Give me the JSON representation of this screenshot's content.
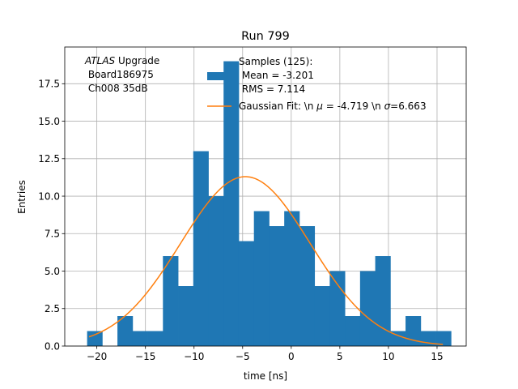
{
  "chart_data": {
    "type": "bar",
    "title": "Run 799",
    "xlabel": "time [ns]",
    "ylabel": "Entries",
    "xlim": [
      -23.3,
      18.0
    ],
    "ylim": [
      0,
      19.95
    ],
    "grid": true,
    "x_ticks": [
      -20,
      -15,
      -10,
      -5,
      0,
      5,
      10,
      15
    ],
    "x_tick_labels": [
      "−20",
      "−15",
      "−10",
      "−5",
      "0",
      "5",
      "10",
      "15"
    ],
    "y_ticks": [
      0,
      2.5,
      5,
      7.5,
      10,
      12.5,
      15,
      17.5
    ],
    "y_tick_labels": [
      "0.0",
      "2.5",
      "5.0",
      "7.5",
      "10.0",
      "12.5",
      "15.0",
      "17.5"
    ],
    "bin_edges": [
      -21.0,
      -19.44,
      -17.88,
      -16.32,
      -14.76,
      -13.2,
      -11.64,
      -10.08,
      -8.52,
      -6.96,
      -5.4,
      -3.84,
      -2.28,
      -0.72,
      0.84,
      2.4,
      3.96,
      5.52,
      7.08,
      8.64,
      10.2,
      11.76,
      13.32,
      14.88,
      16.44
    ],
    "counts": [
      1,
      0,
      2,
      1,
      1,
      6,
      4,
      13,
      10,
      19,
      7,
      9,
      8,
      9,
      8,
      4,
      5,
      2,
      5,
      6,
      1,
      2,
      1,
      1
    ],
    "series": [
      {
        "name": "Samples (125):",
        "type": "histogram",
        "color": "#1f77b4",
        "note_lines": [
          "Mean = -3.201",
          "RMS = 7.114"
        ]
      },
      {
        "name": "Gaussian Fit:",
        "type": "line",
        "color": "#ff7f0e",
        "fit": {
          "amplitude": 11.3,
          "mu": -4.719,
          "sigma": 6.663,
          "x_range": [
            -20.8,
            15.6
          ]
        }
      }
    ],
    "legend": {
      "position": "top-right",
      "samples_line1": "Samples (125):",
      "samples_line2": " Mean = -3.201",
      "samples_line3": " RMS = 7.114",
      "fit_prefix": "Gaussian Fit: \\n ",
      "fit_mu_sym": "μ",
      "fit_mid": " = -4.719 \\n ",
      "fit_sigma_sym": "σ",
      "fit_suffix": "=6.663"
    },
    "annotation": {
      "atlas": "ATLAS",
      "upgrade": " Upgrade",
      "line2": " Board186975",
      "line3": " Ch008 35dB"
    }
  }
}
